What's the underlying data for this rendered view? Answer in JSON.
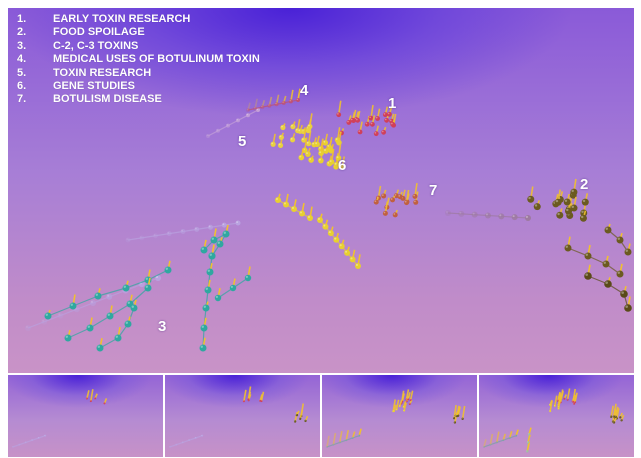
{
  "legend": {
    "items": [
      {
        "num": "1.",
        "label": "EARLY TOXIN RESEARCH"
      },
      {
        "num": "2.",
        "label": "FOOD SPOILAGE"
      },
      {
        "num": "3.",
        "label": "C-2, C-3 TOXINS"
      },
      {
        "num": "4.",
        "label": "MEDICAL USES OF BOTULINUM TOXIN"
      },
      {
        "num": "5.",
        "label": "TOXIN RESEARCH"
      },
      {
        "num": "6.",
        "label": "GENE STUDIES"
      },
      {
        "num": "7.",
        "label": "BOTULISM DISEASE"
      }
    ]
  },
  "cluster_labels": [
    "1",
    "2",
    "3",
    "4",
    "5",
    "6",
    "7"
  ],
  "colors": {
    "cluster_1": "#d0405a",
    "cluster_2": "#e0c040",
    "cluster_3": "#2fa8a0",
    "cluster_4": "#c05070",
    "cluster_5": "#e8d040",
    "cluster_6": "#e8d030",
    "cluster_7": "#c06040",
    "stick": "#f0c030"
  },
  "thumbnails": [
    {
      "name": "thumbnail-1"
    },
    {
      "name": "thumbnail-2"
    },
    {
      "name": "thumbnail-3"
    },
    {
      "name": "thumbnail-4"
    }
  ]
}
